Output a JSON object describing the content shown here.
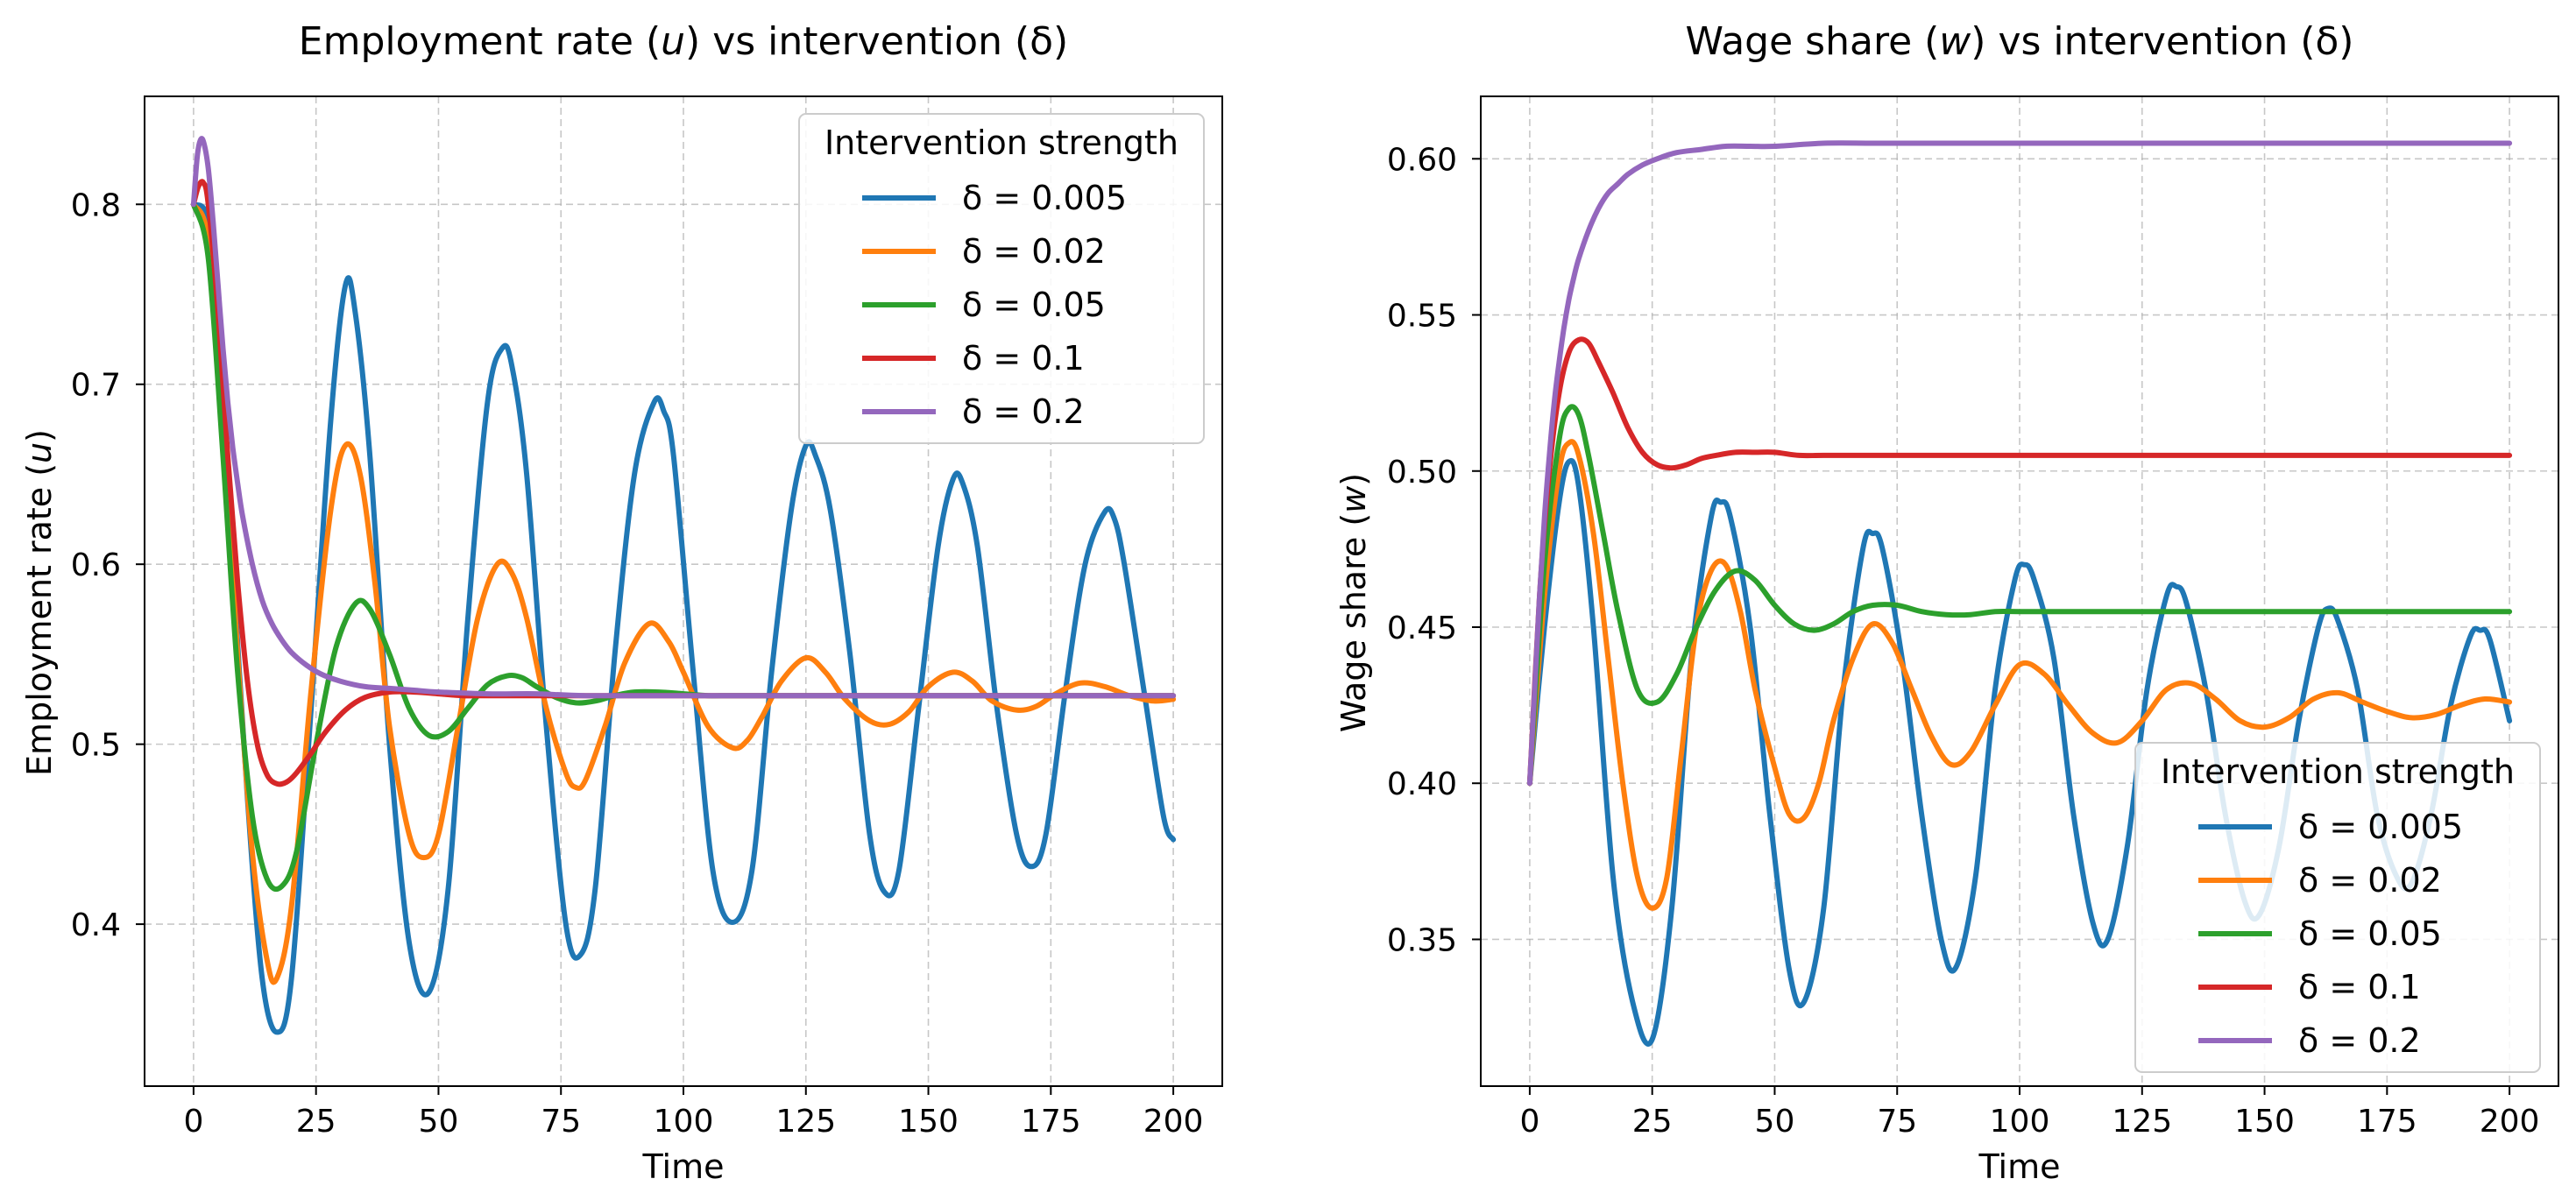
{
  "chart_data": [
    {
      "type": "line",
      "title": "Employment rate (u) vs intervention (δ)",
      "title_parts": {
        "before": "Employment rate (",
        "var": "u",
        "after": ") vs intervention (δ)"
      },
      "xlabel": "Time",
      "ylabel": "Employment rate (u)",
      "ylabel_parts": {
        "before": "Employment rate (",
        "var": "u",
        "after": ")"
      },
      "xlim": [
        -10,
        210
      ],
      "ylim": [
        0.31,
        0.86
      ],
      "xticks": [
        0,
        25,
        50,
        75,
        100,
        125,
        150,
        175,
        200
      ],
      "xtick_labels": [
        "0",
        "25",
        "50",
        "75",
        "100",
        "125",
        "150",
        "175",
        "200"
      ],
      "yticks": [
        0.4,
        0.5,
        0.6,
        0.7,
        0.8
      ],
      "ytick_labels": [
        "0.4",
        "0.5",
        "0.6",
        "0.7",
        "0.8"
      ],
      "grid": true,
      "legend": {
        "title": "Intervention strength",
        "placement": "top-right"
      },
      "series": [
        {
          "name": "δ = 0.005",
          "color": "#1f77b4",
          "x": [
            0,
            3,
            5,
            8,
            11,
            14,
            17,
            20,
            24,
            28,
            31,
            33,
            36,
            40,
            44,
            48,
            52,
            56,
            60,
            63,
            65,
            68,
            72,
            76,
            79,
            82,
            86,
            90,
            94,
            96,
            98,
            102,
            106,
            110,
            114,
            118,
            122,
            125,
            127,
            130,
            134,
            138,
            141,
            144,
            148,
            152,
            155,
            157,
            160,
            164,
            168,
            171,
            174,
            178,
            182,
            186,
            188,
            190,
            194,
            198,
            200
          ],
          "values": [
            0.8,
            0.79,
            0.72,
            0.6,
            0.47,
            0.37,
            0.34,
            0.37,
            0.52,
            0.68,
            0.755,
            0.74,
            0.66,
            0.5,
            0.39,
            0.362,
            0.42,
            0.57,
            0.69,
            0.72,
            0.71,
            0.65,
            0.51,
            0.4,
            0.383,
            0.42,
            0.55,
            0.65,
            0.69,
            0.685,
            0.66,
            0.54,
            0.43,
            0.401,
            0.43,
            0.54,
            0.63,
            0.666,
            0.66,
            0.63,
            0.55,
            0.45,
            0.418,
            0.43,
            0.52,
            0.61,
            0.647,
            0.645,
            0.61,
            0.52,
            0.45,
            0.432,
            0.45,
            0.53,
            0.6,
            0.629,
            0.625,
            0.6,
            0.53,
            0.46,
            0.447
          ]
        },
        {
          "name": "δ = 0.02",
          "color": "#ff7f0e",
          "x": [
            0,
            3,
            6,
            9,
            12,
            15,
            17,
            20,
            24,
            28,
            31,
            34,
            37,
            40,
            44,
            47,
            50,
            54,
            58,
            62,
            65,
            68,
            72,
            76,
            78,
            80,
            84,
            88,
            93,
            97,
            100,
            105,
            110,
            113,
            116,
            120,
            125,
            129,
            133,
            138,
            142,
            146,
            150,
            155,
            159,
            163,
            168,
            172,
            176,
            181,
            186,
            191,
            196,
            200
          ],
          "values": [
            0.8,
            0.78,
            0.68,
            0.55,
            0.44,
            0.38,
            0.37,
            0.41,
            0.53,
            0.63,
            0.666,
            0.65,
            0.59,
            0.51,
            0.45,
            0.437,
            0.45,
            0.51,
            0.57,
            0.6,
            0.595,
            0.57,
            0.52,
            0.484,
            0.476,
            0.48,
            0.51,
            0.545,
            0.567,
            0.557,
            0.54,
            0.51,
            0.498,
            0.502,
            0.515,
            0.535,
            0.548,
            0.54,
            0.525,
            0.513,
            0.511,
            0.518,
            0.532,
            0.54,
            0.535,
            0.524,
            0.519,
            0.521,
            0.528,
            0.534,
            0.532,
            0.527,
            0.524,
            0.525
          ]
        },
        {
          "name": "δ = 0.05",
          "color": "#2ca02c",
          "x": [
            0,
            3,
            6,
            9,
            12,
            15,
            18,
            21,
            25,
            29,
            33,
            36,
            40,
            44,
            48,
            52,
            56,
            60,
            64,
            67,
            70,
            74,
            78,
            82,
            86,
            90,
            95,
            100,
            105,
            110,
            120,
            130,
            140,
            150,
            170,
            200
          ],
          "values": [
            0.8,
            0.77,
            0.66,
            0.54,
            0.46,
            0.425,
            0.421,
            0.44,
            0.5,
            0.553,
            0.578,
            0.575,
            0.55,
            0.52,
            0.505,
            0.507,
            0.52,
            0.533,
            0.538,
            0.537,
            0.532,
            0.526,
            0.523,
            0.524,
            0.527,
            0.529,
            0.529,
            0.528,
            0.527,
            0.527,
            0.527,
            0.527,
            0.527,
            0.527,
            0.527,
            0.527
          ]
        },
        {
          "name": "δ = 0.1",
          "color": "#d62728",
          "x": [
            0,
            1,
            2,
            3,
            5,
            7,
            9,
            11,
            13,
            15,
            17,
            19,
            21,
            24,
            27,
            31,
            35,
            40,
            45,
            50,
            55,
            60,
            70,
            80,
            90,
            100,
            120,
            150,
            200
          ],
          "values": [
            0.8,
            0.81,
            0.812,
            0.8,
            0.74,
            0.66,
            0.59,
            0.535,
            0.5,
            0.483,
            0.478,
            0.479,
            0.484,
            0.495,
            0.507,
            0.519,
            0.526,
            0.529,
            0.529,
            0.528,
            0.527,
            0.527,
            0.527,
            0.527,
            0.527,
            0.527,
            0.527,
            0.527,
            0.527
          ]
        },
        {
          "name": "δ = 0.2",
          "color": "#9467bd",
          "x": [
            0,
            0.7,
            1.3,
            2,
            3,
            4,
            5,
            6,
            7,
            8,
            9,
            10,
            12,
            14,
            16,
            18,
            20,
            23,
            26,
            30,
            35,
            40,
            45,
            50,
            60,
            70,
            80,
            100,
            120,
            150,
            200
          ],
          "values": [
            0.8,
            0.825,
            0.835,
            0.835,
            0.82,
            0.79,
            0.755,
            0.72,
            0.69,
            0.665,
            0.645,
            0.627,
            0.6,
            0.58,
            0.567,
            0.558,
            0.551,
            0.544,
            0.539,
            0.535,
            0.532,
            0.531,
            0.53,
            0.529,
            0.528,
            0.528,
            0.527,
            0.527,
            0.527,
            0.527,
            0.527
          ]
        }
      ]
    },
    {
      "type": "line",
      "title": "Wage share (w) vs intervention (δ)",
      "title_parts": {
        "before": "Wage share (",
        "var": "w",
        "after": ") vs intervention (δ)"
      },
      "xlabel": "Time",
      "ylabel": "Wage share (w)",
      "ylabel_parts": {
        "before": "Wage share (",
        "var": "w",
        "after": ")"
      },
      "xlim": [
        -10,
        210
      ],
      "ylim": [
        0.303,
        0.62
      ],
      "xticks": [
        0,
        25,
        50,
        75,
        100,
        125,
        150,
        175,
        200
      ],
      "xtick_labels": [
        "0",
        "25",
        "50",
        "75",
        "100",
        "125",
        "150",
        "175",
        "200"
      ],
      "yticks": [
        0.35,
        0.4,
        0.45,
        0.5,
        0.55,
        0.6
      ],
      "ytick_labels": [
        "0.35",
        "0.40",
        "0.45",
        "0.50",
        "0.55",
        "0.60"
      ],
      "grid": true,
      "legend": {
        "title": "Intervention strength",
        "placement": "bottom-right"
      },
      "series": [
        {
          "name": "δ = 0.005",
          "color": "#1f77b4",
          "x": [
            0,
            3,
            6,
            8,
            10,
            13,
            17,
            21,
            25,
            29,
            33,
            37,
            39,
            41,
            45,
            49,
            53,
            56,
            60,
            64,
            68,
            70,
            72,
            76,
            80,
            84,
            87,
            91,
            95,
            99,
            101,
            103,
            107,
            111,
            115,
            118,
            122,
            126,
            130,
            132,
            134,
            138,
            142,
            146,
            149,
            153,
            157,
            161,
            163,
            165,
            169,
            173,
            177,
            180,
            184,
            188,
            192,
            194,
            196,
            200
          ],
          "values": [
            0.4,
            0.45,
            0.49,
            0.503,
            0.495,
            0.45,
            0.37,
            0.33,
            0.318,
            0.36,
            0.44,
            0.485,
            0.49,
            0.485,
            0.45,
            0.39,
            0.34,
            0.33,
            0.36,
            0.43,
            0.475,
            0.48,
            0.475,
            0.44,
            0.39,
            0.35,
            0.341,
            0.37,
            0.43,
            0.465,
            0.47,
            0.465,
            0.44,
            0.39,
            0.355,
            0.35,
            0.38,
            0.43,
            0.46,
            0.463,
            0.458,
            0.43,
            0.39,
            0.362,
            0.358,
            0.38,
            0.42,
            0.45,
            0.456,
            0.452,
            0.43,
            0.39,
            0.37,
            0.368,
            0.39,
            0.425,
            0.447,
            0.449,
            0.446,
            0.42
          ]
        },
        {
          "name": "δ = 0.02",
          "color": "#ff7f0e",
          "x": [
            0,
            3,
            6,
            8,
            10,
            13,
            16,
            19,
            22,
            25,
            28,
            31,
            34,
            37,
            40,
            43,
            46,
            50,
            53,
            56,
            59,
            62,
            66,
            70,
            74,
            78,
            82,
            86,
            90,
            95,
            100,
            105,
            110,
            115,
            120,
            125,
            130,
            135,
            140,
            145,
            150,
            155,
            160,
            165,
            170,
            175,
            180,
            185,
            190,
            195,
            200
          ],
          "values": [
            0.4,
            0.46,
            0.5,
            0.509,
            0.505,
            0.48,
            0.44,
            0.4,
            0.37,
            0.36,
            0.37,
            0.41,
            0.45,
            0.468,
            0.47,
            0.455,
            0.43,
            0.405,
            0.39,
            0.389,
            0.4,
            0.42,
            0.44,
            0.451,
            0.445,
            0.43,
            0.415,
            0.406,
            0.41,
            0.425,
            0.438,
            0.435,
            0.425,
            0.416,
            0.413,
            0.42,
            0.43,
            0.432,
            0.427,
            0.42,
            0.418,
            0.421,
            0.427,
            0.429,
            0.426,
            0.423,
            0.421,
            0.422,
            0.425,
            0.427,
            0.426
          ]
        },
        {
          "name": "δ = 0.05",
          "color": "#2ca02c",
          "x": [
            0,
            3,
            6,
            8,
            10,
            12,
            15,
            18,
            22,
            26,
            30,
            34,
            38,
            42,
            46,
            50,
            54,
            58,
            62,
            66,
            70,
            75,
            80,
            85,
            90,
            95,
            100,
            110,
            120,
            130,
            150,
            200
          ],
          "values": [
            0.4,
            0.47,
            0.51,
            0.52,
            0.518,
            0.505,
            0.48,
            0.455,
            0.43,
            0.426,
            0.435,
            0.45,
            0.462,
            0.468,
            0.465,
            0.457,
            0.451,
            0.449,
            0.451,
            0.455,
            0.457,
            0.457,
            0.455,
            0.454,
            0.454,
            0.455,
            0.455,
            0.455,
            0.455,
            0.455,
            0.455,
            0.455
          ]
        },
        {
          "name": "δ = 0.1",
          "color": "#d62728",
          "x": [
            0,
            2,
            4,
            6,
            8,
            10,
            12,
            14,
            17,
            20,
            23,
            26,
            29,
            32,
            35,
            38,
            42,
            46,
            50,
            55,
            60,
            70,
            80,
            100,
            150,
            200
          ],
          "values": [
            0.4,
            0.46,
            0.5,
            0.525,
            0.538,
            0.542,
            0.541,
            0.535,
            0.525,
            0.514,
            0.506,
            0.502,
            0.501,
            0.502,
            0.504,
            0.505,
            0.506,
            0.506,
            0.506,
            0.505,
            0.505,
            0.505,
            0.505,
            0.505,
            0.505,
            0.505
          ]
        },
        {
          "name": "δ = 0.2",
          "color": "#9467bd",
          "x": [
            0,
            1,
            2,
            3,
            4,
            5,
            6,
            7,
            8,
            9,
            10,
            12,
            14,
            16,
            18,
            20,
            23,
            26,
            30,
            35,
            40,
            45,
            50,
            60,
            70,
            80,
            90,
            100,
            120,
            150,
            200
          ],
          "values": [
            0.4,
            0.43,
            0.46,
            0.485,
            0.505,
            0.522,
            0.535,
            0.546,
            0.555,
            0.562,
            0.568,
            0.577,
            0.584,
            0.589,
            0.592,
            0.595,
            0.598,
            0.6,
            0.602,
            0.603,
            0.604,
            0.604,
            0.604,
            0.605,
            0.605,
            0.605,
            0.605,
            0.605,
            0.605,
            0.605,
            0.605
          ]
        }
      ]
    }
  ]
}
